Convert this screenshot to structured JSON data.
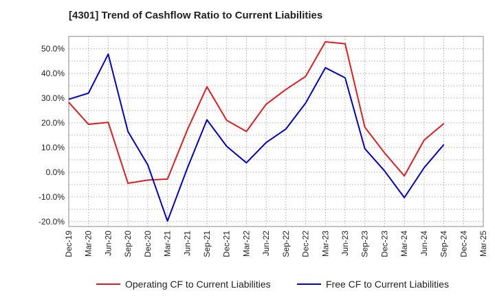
{
  "chart_data": {
    "type": "line",
    "title": "[4301]  Trend of Cashflow Ratio to Current Liabilities",
    "xlabel": "",
    "ylabel": "",
    "ylim": [
      -22,
      55
    ],
    "yticks": [
      -20,
      -10,
      0,
      10,
      20,
      30,
      40,
      50
    ],
    "ytick_labels": [
      "-20.0%",
      "-10.0%",
      "0.0%",
      "10.0%",
      "20.0%",
      "30.0%",
      "40.0%",
      "50.0%"
    ],
    "categories": [
      "Dec-19",
      "Mar-20",
      "Jun-20",
      "Sep-20",
      "Dec-20",
      "Mar-21",
      "Jun-21",
      "Sep-21",
      "Dec-21",
      "Mar-22",
      "Jun-22",
      "Sep-22",
      "Dec-22",
      "Mar-23",
      "Jun-23",
      "Sep-23",
      "Dec-23",
      "Mar-24",
      "Jun-24",
      "Sep-24",
      "Dec-24",
      "Mar-25"
    ],
    "grid": true,
    "legend_position": "bottom",
    "series": [
      {
        "name": "Operating CF to Current Liabilities",
        "color": "#e41a1c",
        "values": [
          28.3,
          19.4,
          20.2,
          -4.5,
          -3.2,
          -2.8,
          17.0,
          34.6,
          21.0,
          16.5,
          27.5,
          33.5,
          38.8,
          52.8,
          52.0,
          18.2,
          7.8,
          -1.5,
          13.0,
          19.7,
          null,
          null
        ]
      },
      {
        "name": "Free CF to Current Liabilities",
        "color": "#0000cc",
        "values": [
          29.5,
          32.0,
          47.8,
          16.5,
          3.0,
          -19.8,
          1.5,
          21.2,
          10.5,
          3.8,
          12.0,
          17.5,
          28.0,
          42.3,
          38.2,
          9.5,
          0.5,
          -10.3,
          1.8,
          11.2,
          null,
          null
        ]
      }
    ]
  }
}
